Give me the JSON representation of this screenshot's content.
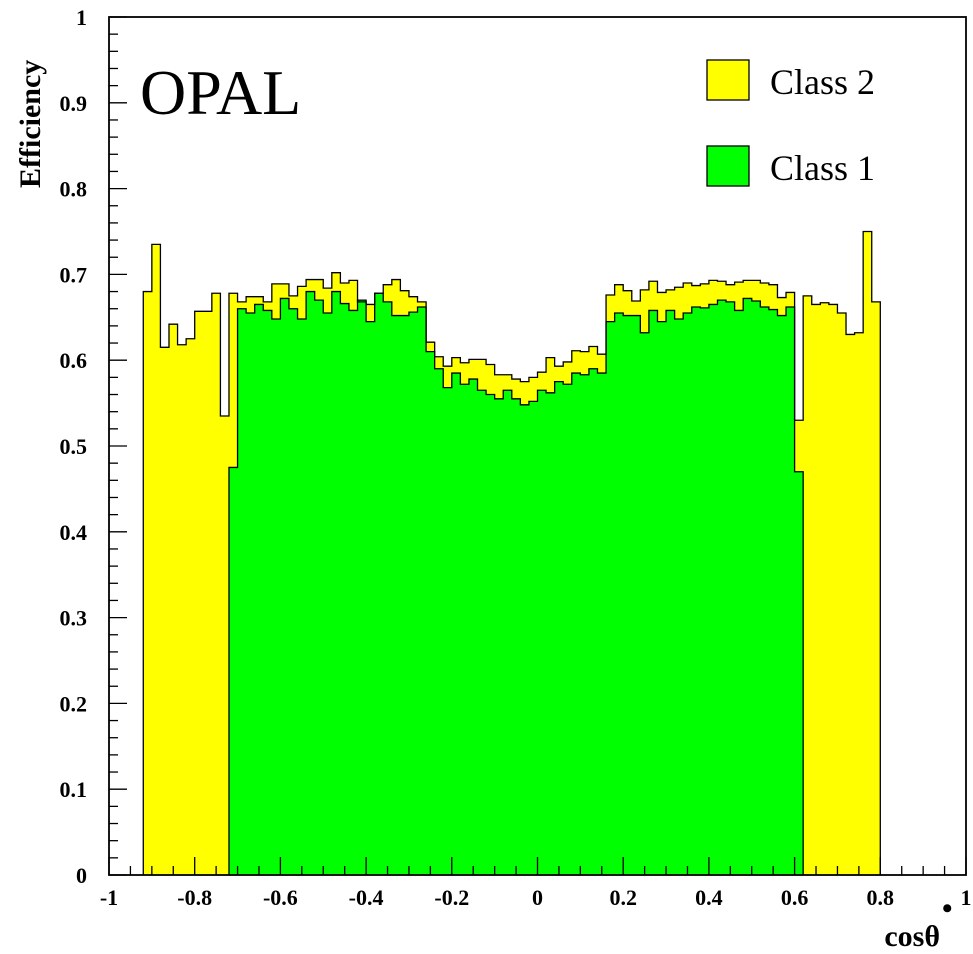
{
  "chart_data": {
    "type": "bar",
    "experiment_label": "OPAL",
    "xlabel": "cosθ*",
    "xlabel_main": "cosθ",
    "xlabel_superscript": "•",
    "ylabel": "Efficiency",
    "xlim": [
      -1,
      1
    ],
    "ylim": [
      0,
      1
    ],
    "x_ticks": [
      -1,
      -0.8,
      -0.6,
      -0.4,
      -0.2,
      0,
      0.2,
      0.4,
      0.6,
      0.8,
      1
    ],
    "x_tick_labels": [
      "-1",
      "-0.8",
      "-0.6",
      "-0.4",
      "-0.2",
      "0",
      "0.2",
      "0.4",
      "0.6",
      "0.8",
      "1"
    ],
    "y_ticks": [
      0,
      0.1,
      0.2,
      0.3,
      0.4,
      0.5,
      0.6,
      0.7,
      0.8,
      0.9,
      1
    ],
    "y_tick_labels": [
      "0",
      "0.1",
      "0.2",
      "0.3",
      "0.4",
      "0.5",
      "0.6",
      "0.7",
      "0.8",
      "0.9",
      "1"
    ],
    "grid": false,
    "legend_position": "top-right",
    "bin_width": 0.02,
    "bins_lower_edge": -0.92,
    "series": [
      {
        "name": "Class 2",
        "color": "#ffff00",
        "values": [
          0.68,
          0.735,
          0.615,
          0.642,
          0.618,
          0.625,
          0.657,
          0.657,
          0.678,
          0.535,
          0.678,
          0.668,
          0.674,
          0.674,
          0.668,
          0.689,
          0.689,
          0.675,
          0.686,
          0.694,
          0.694,
          0.684,
          0.702,
          0.69,
          0.693,
          0.668,
          0.665,
          0.678,
          0.688,
          0.694,
          0.681,
          0.674,
          0.668,
          0.621,
          0.604,
          0.593,
          0.603,
          0.597,
          0.601,
          0.601,
          0.595,
          0.583,
          0.583,
          0.578,
          0.575,
          0.58,
          0.586,
          0.603,
          0.593,
          0.598,
          0.611,
          0.61,
          0.616,
          0.607,
          0.676,
          0.688,
          0.681,
          0.669,
          0.682,
          0.692,
          0.679,
          0.682,
          0.685,
          0.69,
          0.687,
          0.689,
          0.693,
          0.692,
          0.688,
          0.691,
          0.693,
          0.693,
          0.69,
          0.688,
          0.673,
          0.679,
          0.53,
          0.675,
          0.665,
          0.667,
          0.665,
          0.655,
          0.63,
          0.632,
          0.75,
          0.668
        ]
      },
      {
        "name": "Class 1",
        "color": "#00ff00",
        "values": [
          0,
          0,
          0,
          0,
          0,
          0,
          0,
          0,
          0,
          0,
          0.475,
          0.66,
          0.655,
          0.665,
          0.658,
          0.648,
          0.672,
          0.66,
          0.648,
          0.68,
          0.67,
          0.655,
          0.68,
          0.666,
          0.658,
          0.67,
          0.645,
          0.678,
          0.668,
          0.652,
          0.652,
          0.656,
          0.662,
          0.61,
          0.59,
          0.568,
          0.585,
          0.572,
          0.578,
          0.565,
          0.56,
          0.555,
          0.565,
          0.555,
          0.548,
          0.552,
          0.565,
          0.562,
          0.575,
          0.572,
          0.585,
          0.583,
          0.59,
          0.585,
          0.645,
          0.655,
          0.652,
          0.652,
          0.632,
          0.658,
          0.645,
          0.658,
          0.648,
          0.655,
          0.662,
          0.661,
          0.665,
          0.67,
          0.668,
          0.658,
          0.672,
          0.669,
          0.662,
          0.659,
          0.652,
          0.662,
          0.47,
          0,
          0,
          0,
          0,
          0,
          0,
          0,
          0,
          0
        ]
      }
    ]
  }
}
